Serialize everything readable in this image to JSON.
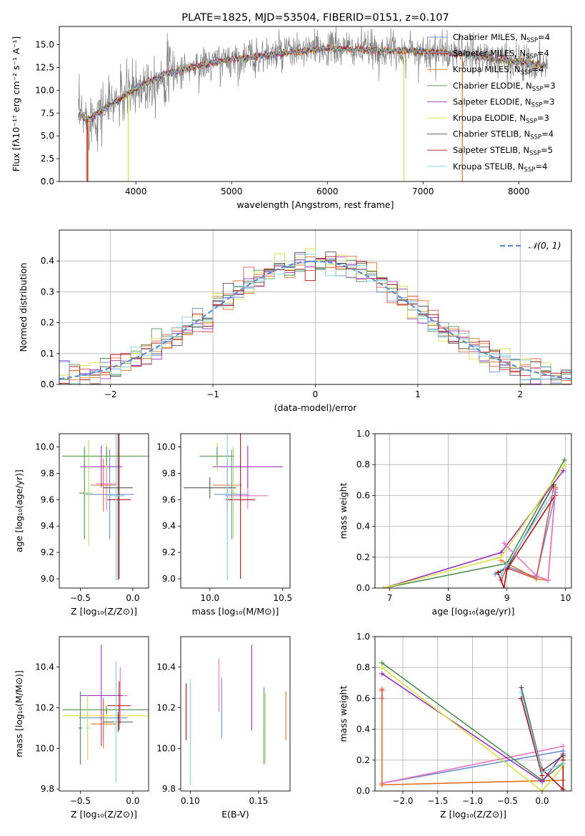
{
  "colors": {
    "chabrier_miles": "#6b8fd6",
    "salpeter_miles": "#e05050",
    "kroupa_miles": "#e07020",
    "chabrier_elodie": "#4f8f4f",
    "salpeter_elodie": "#9b30c0",
    "kroupa_elodie": "#d8e040",
    "chabrier_stelib": "#555555",
    "salpeter_stelib": "#b01010",
    "kroupa_stelib": "#7fd0e0",
    "pink": "#f070c0",
    "lightgreen": "#b0e060",
    "normal": "#5b8ed8"
  },
  "chart_data": [
    {
      "id": "spectrum",
      "type": "line",
      "title": "PLATE=1825, MJD=53504, FIBERID=0151, z=0.107",
      "xlabel": "wavelength [Angstrom, rest frame]",
      "ylabel": "Flux [fλ10⁻¹⁷ erg cm⁻² s⁻¹ A⁻¹]",
      "xlim": [
        3200,
        8550
      ],
      "ylim": [
        0,
        17
      ],
      "xticks": [
        "4000",
        "5000",
        "6000",
        "7000",
        "8000"
      ],
      "yticks": [
        "0.0",
        "2.5",
        "5.0",
        "7.5",
        "10.0",
        "12.5",
        "15.0"
      ],
      "legend_position": "right",
      "legend": [
        {
          "label": "Chabrier MILES, N",
          "sub": "SSP",
          "suffix": "=4",
          "color": "chabrier_miles"
        },
        {
          "label": "Salpeter MILES, N",
          "sub": "SSP",
          "suffix": "=4",
          "color": "salpeter_miles"
        },
        {
          "label": "Kroupa MILES, N",
          "sub": "SSP",
          "suffix": "=4",
          "color": "kroupa_miles"
        },
        {
          "label": "Chabrier ELODIE, N",
          "sub": "SSP",
          "suffix": "=3",
          "color": "chabrier_elodie"
        },
        {
          "label": "Salpeter ELODIE, N",
          "sub": "SSP",
          "suffix": "=3",
          "color": "salpeter_elodie"
        },
        {
          "label": "Kroupa ELODIE, N",
          "sub": "SSP",
          "suffix": "=3",
          "color": "kroupa_elodie"
        },
        {
          "label": "Chabrier STELIB, N",
          "sub": "SSP",
          "suffix": "=4",
          "color": "chabrier_stelib"
        },
        {
          "label": "Salpeter STELIB, N",
          "sub": "SSP",
          "suffix": "=5",
          "color": "salpeter_stelib"
        },
        {
          "label": "Kroupa STELIB, N",
          "sub": "SSP",
          "suffix": "=4",
          "color": "kroupa_stelib"
        }
      ],
      "model_curve": {
        "x": [
          3400,
          3500,
          3700,
          3900,
          4100,
          4300,
          4600,
          5000,
          5500,
          6000,
          6500,
          7000,
          7400,
          7800,
          8300
        ],
        "y": [
          7.3,
          6.8,
          8.2,
          9.5,
          10.8,
          11.8,
          12.6,
          13.4,
          14.0,
          14.6,
          14.4,
          14.3,
          14.0,
          13.4,
          12.7
        ]
      },
      "data_scatter": 1.0
    },
    {
      "id": "residuals",
      "type": "histogram",
      "xlabel": "(data-model)/error",
      "ylabel": "Normed distribution",
      "xlim": [
        -2.5,
        2.5
      ],
      "ylim": [
        0,
        0.5
      ],
      "xticks": [
        "−2",
        "−1",
        "0",
        "1",
        "2"
      ],
      "yticks": [
        "0.0",
        "0.1",
        "0.2",
        "0.3",
        "0.4"
      ],
      "grid": true,
      "legend_position": "top-right",
      "legend": [
        {
          "label": "𝒩(0, 1)",
          "color": "normal"
        }
      ],
      "bins": 50,
      "series_colors": [
        "chabrier_miles",
        "salpeter_miles",
        "kroupa_miles",
        "chabrier_elodie",
        "salpeter_elodie",
        "kroupa_elodie",
        "chabrier_stelib",
        "salpeter_stelib",
        "kroupa_stelib"
      ]
    },
    {
      "id": "age_vs_Z",
      "type": "errorbar",
      "xlabel": "Z [log₁₀(Z/Z⊙)]",
      "ylabel": "age  [log₁₀(age/yr)]",
      "xlim": [
        -0.7,
        0.15
      ],
      "ylim": [
        8.93,
        10.1
      ],
      "xticks": [
        {
          "v": -0.5,
          "t": "−0.5"
        },
        {
          "v": 0.0,
          "t": "0.0"
        }
      ],
      "yticks": [
        {
          "v": 9.0,
          "t": "9.0"
        },
        {
          "v": 9.2,
          "t": "9.2"
        },
        {
          "v": 9.4,
          "t": "9.4"
        },
        {
          "v": 9.6,
          "t": "9.6"
        },
        {
          "v": 9.8,
          "t": "9.8"
        },
        {
          "v": 10.0,
          "t": "10.0"
        }
      ],
      "points": [
        {
          "x": -0.22,
          "y": 9.64,
          "xe": 0.23,
          "ye": 0.34,
          "c": "chabrier_miles"
        },
        {
          "x": -0.25,
          "y": 9.72,
          "xe": 0.1,
          "ye": 0.2,
          "c": "pink"
        },
        {
          "x": -0.28,
          "y": 9.71,
          "xe": 0.12,
          "ye": 0.2,
          "c": "kroupa_miles"
        },
        {
          "x": -0.3,
          "y": 9.85,
          "xe": 0.2,
          "ye": 0.16,
          "c": "salpeter_elodie"
        },
        {
          "x": -0.25,
          "y": 9.93,
          "xe": 0.42,
          "ye": 0.1,
          "c": "kroupa_elodie"
        },
        {
          "x": -0.25,
          "y": 9.93,
          "xe": 0.42,
          "ye": 0.07,
          "c": "chabrier_elodie"
        },
        {
          "x": -0.14,
          "y": 9.69,
          "xe": 0.14,
          "ye": 0.7,
          "c": "chabrier_stelib"
        },
        {
          "x": -0.13,
          "y": 9.6,
          "xe": 0.11,
          "ye": 0.6,
          "c": "salpeter_stelib"
        },
        {
          "x": -0.16,
          "y": 9.63,
          "xe": 0.08,
          "ye": 0.64,
          "c": "kroupa_stelib"
        },
        {
          "x": -0.46,
          "y": 9.65,
          "xe": 0.05,
          "ye": 0.35,
          "c": "chabrier_elodie"
        },
        {
          "x": -0.42,
          "y": 9.65,
          "xe": 0.04,
          "ye": 0.4,
          "c": "lightgreen"
        }
      ]
    },
    {
      "id": "age_vs_mass",
      "type": "errorbar",
      "xlabel": "mass [log₁₀(M/M⊙)]",
      "ylabel": "",
      "xlim": [
        9.8,
        10.55
      ],
      "ylim": [
        8.93,
        10.1
      ],
      "xticks": [
        {
          "v": 10.0,
          "t": "10.0"
        },
        {
          "v": 10.5,
          "t": "10.5"
        }
      ],
      "yticks": [
        {
          "v": 9.0,
          "t": "9.0"
        },
        {
          "v": 9.2,
          "t": "9.2"
        },
        {
          "v": 9.4,
          "t": "9.4"
        },
        {
          "v": 9.6,
          "t": "9.6"
        },
        {
          "v": 9.8,
          "t": "9.8"
        },
        {
          "v": 10.0,
          "t": "10.0"
        }
      ],
      "points": [
        {
          "x": 10.15,
          "y": 9.64,
          "xe": 0.12,
          "ye": 0.34,
          "c": "chabrier_miles"
        },
        {
          "x": 10.26,
          "y": 9.63,
          "xe": 0.14,
          "ye": 0.1,
          "c": "pink"
        },
        {
          "x": 10.12,
          "y": 9.71,
          "xe": 0.1,
          "ye": 0.2,
          "c": "kroupa_miles"
        },
        {
          "x": 10.26,
          "y": 9.85,
          "xe": 0.24,
          "ye": 0.16,
          "c": "salpeter_elodie"
        },
        {
          "x": 10.05,
          "y": 9.93,
          "xe": 0.12,
          "ye": 0.1,
          "c": "kroupa_elodie"
        },
        {
          "x": 10.05,
          "y": 9.93,
          "xe": 0.12,
          "ye": 0.07,
          "c": "chabrier_elodie"
        },
        {
          "x": 10.0,
          "y": 9.69,
          "xe": 0.18,
          "ye": 0.08,
          "c": "chabrier_stelib"
        },
        {
          "x": 10.21,
          "y": 9.6,
          "xe": 0.1,
          "ye": 0.6,
          "c": "salpeter_stelib"
        },
        {
          "x": 10.12,
          "y": 9.63,
          "xe": 0.02,
          "ye": 0.64,
          "c": "kroupa_stelib"
        },
        {
          "x": 10.16,
          "y": 9.65,
          "xe": 0.02,
          "ye": 0.35,
          "c": "lightgreen"
        }
      ]
    },
    {
      "id": "weight_vs_age",
      "type": "line",
      "xlabel": "age  [log₁₀(age/yr)]",
      "ylabel": "mass weight",
      "xlim": [
        6.75,
        10.1
      ],
      "ylim": [
        0,
        1.0
      ],
      "xticks": [
        {
          "v": 7,
          "t": "7"
        },
        {
          "v": 8,
          "t": "8"
        },
        {
          "v": 9,
          "t": "9"
        },
        {
          "v": 10,
          "t": "10"
        }
      ],
      "yticks": [
        {
          "v": 0,
          "t": "0.0"
        },
        {
          "v": 0.2,
          "t": "0.2"
        },
        {
          "v": 0.4,
          "t": "0.4"
        },
        {
          "v": 0.6,
          "t": "0.6"
        },
        {
          "v": 0.8,
          "t": "0.8"
        },
        {
          "v": 1.0,
          "t": "1.0"
        }
      ],
      "grid": true,
      "series": [
        {
          "c": "chabrier_miles",
          "x": [
            8.8,
            9.0,
            9.5,
            9.83
          ],
          "y": [
            0.09,
            0.14,
            0.07,
            0.62
          ]
        },
        {
          "c": "salpeter_miles",
          "x": [
            8.9,
            9.0,
            9.5,
            9.8
          ],
          "y": [
            0.05,
            0.13,
            0.06,
            0.66
          ]
        },
        {
          "c": "kroupa_miles",
          "x": [
            8.9,
            9.5,
            9.7,
            9.83
          ],
          "y": [
            0.18,
            0.06,
            0.05,
            0.65
          ]
        },
        {
          "c": "chabrier_elodie",
          "x": [
            6.9,
            9.0,
            9.98
          ],
          "y": [
            0.0,
            0.16,
            0.83
          ]
        },
        {
          "c": "salpeter_elodie",
          "x": [
            6.9,
            8.9,
            9.96
          ],
          "y": [
            0.0,
            0.23,
            0.76
          ]
        },
        {
          "c": "kroupa_elodie",
          "x": [
            6.9,
            8.9,
            9.98
          ],
          "y": [
            0.0,
            0.2,
            0.8
          ]
        },
        {
          "c": "chabrier_stelib",
          "x": [
            8.85,
            9.0,
            9.8
          ],
          "y": [
            0.1,
            0.13,
            0.67
          ]
        },
        {
          "c": "salpeter_stelib",
          "x": [
            8.85,
            8.95,
            9.0,
            9.82
          ],
          "y": [
            0.1,
            0.0,
            0.12,
            0.6
          ]
        },
        {
          "c": "kroupa_stelib",
          "x": [
            8.9,
            9.0,
            9.83
          ],
          "y": [
            0.08,
            0.15,
            0.64
          ]
        },
        {
          "c": "pink",
          "x": [
            8.95,
            9.5,
            9.7,
            9.83
          ],
          "y": [
            0.29,
            0.08,
            0.05,
            0.64
          ]
        }
      ]
    },
    {
      "id": "mass_vs_Z",
      "type": "errorbar",
      "xlabel": "Z [log₁₀(Z/Z⊙)]",
      "ylabel": "mass [log₁₀(M/M⊙)]",
      "xlim": [
        -0.7,
        0.15
      ],
      "ylim": [
        9.79,
        10.55
      ],
      "xticks": [
        {
          "v": -0.5,
          "t": "−0.5"
        },
        {
          "v": 0.0,
          "t": "0.0"
        }
      ],
      "yticks": [
        {
          "v": 9.8,
          "t": "9.8"
        },
        {
          "v": 10.0,
          "t": "10.0"
        },
        {
          "v": 10.2,
          "t": "10.2"
        },
        {
          "v": 10.4,
          "t": "10.4"
        }
      ],
      "points": [
        {
          "x": -0.28,
          "y": 10.15,
          "xe": 0.23,
          "ye": 0.1,
          "c": "chabrier_miles"
        },
        {
          "x": -0.12,
          "y": 10.26,
          "xe": 0.07,
          "ye": 0.14,
          "c": "pink"
        },
        {
          "x": -0.28,
          "y": 10.12,
          "xe": 0.12,
          "ye": 0.12,
          "c": "kroupa_miles"
        },
        {
          "x": -0.3,
          "y": 10.26,
          "xe": 0.2,
          "ye": 0.25,
          "c": "salpeter_elodie"
        },
        {
          "x": -0.25,
          "y": 10.16,
          "xe": 0.42,
          "ye": 0.05,
          "c": "kroupa_elodie"
        },
        {
          "x": -0.25,
          "y": 10.19,
          "xe": 0.42,
          "ye": 0.02,
          "c": "chabrier_elodie"
        },
        {
          "x": -0.14,
          "y": 10.13,
          "xe": 0.14,
          "ye": 0.05,
          "c": "chabrier_stelib"
        },
        {
          "x": -0.13,
          "y": 10.21,
          "xe": 0.11,
          "ye": 0.12,
          "c": "salpeter_stelib"
        },
        {
          "x": -0.16,
          "y": 10.13,
          "xe": 0.02,
          "ye": 0.3,
          "c": "kroupa_stelib"
        },
        {
          "x": -0.5,
          "y": 10.1,
          "xe": 0.02,
          "ye": 0.18,
          "c": "chabrier_elodie"
        },
        {
          "x": -0.43,
          "y": 10.1,
          "xe": 0.02,
          "ye": 0.16,
          "c": "lightgreen"
        }
      ]
    },
    {
      "id": "mass_vs_ebv",
      "type": "errorbar",
      "xlabel": "E(B-V)",
      "ylabel": "",
      "xlim": [
        0.093,
        0.173
      ],
      "ylim": [
        9.79,
        10.55
      ],
      "xticks": [
        {
          "v": 0.1,
          "t": "0.10"
        },
        {
          "v": 0.15,
          "t": "0.15"
        }
      ],
      "yticks": [
        {
          "v": 9.8,
          "t": "9.8"
        },
        {
          "v": 10.0,
          "t": "10.0"
        },
        {
          "v": 10.2,
          "t": "10.2"
        },
        {
          "v": 10.4,
          "t": "10.4"
        }
      ],
      "points": [
        {
          "x": 0.097,
          "y": 10.18,
          "xe": 0,
          "ye": 0.14,
          "c": "salpeter_stelib"
        },
        {
          "x": 0.1,
          "y": 10.08,
          "xe": 0,
          "ye": 0.26,
          "c": "kroupa_stelib"
        },
        {
          "x": 0.121,
          "y": 10.31,
          "xe": 0,
          "ye": 0.13,
          "c": "pink"
        },
        {
          "x": 0.123,
          "y": 10.2,
          "xe": 0,
          "ye": 0.15,
          "c": "chabrier_miles"
        },
        {
          "x": 0.145,
          "y": 10.3,
          "xe": 0,
          "ye": 0.21,
          "c": "salpeter_elodie"
        },
        {
          "x": 0.154,
          "y": 10.11,
          "xe": 0,
          "ye": 0.19,
          "c": "chabrier_elodie"
        },
        {
          "x": 0.155,
          "y": 10.1,
          "xe": 0,
          "ye": 0.17,
          "c": "lightgreen"
        },
        {
          "x": 0.17,
          "y": 10.16,
          "xe": 0,
          "ye": 0.12,
          "c": "kroupa_miles"
        }
      ]
    },
    {
      "id": "weight_vs_Z",
      "type": "line",
      "xlabel": "Z [log₁₀(Z/Z⊙)]",
      "ylabel": "mass weight",
      "xlim": [
        -2.4,
        0.42
      ],
      "ylim": [
        0,
        1.0
      ],
      "xticks": [
        {
          "v": -2.0,
          "t": "−2.0"
        },
        {
          "v": -1.5,
          "t": "−1.5"
        },
        {
          "v": -1.0,
          "t": "−1.0"
        },
        {
          "v": -0.5,
          "t": "−0.5"
        },
        {
          "v": 0.0,
          "t": "0.0"
        }
      ],
      "yticks": [
        {
          "v": 0,
          "t": "0.0"
        },
        {
          "v": 0.2,
          "t": "0.2"
        },
        {
          "v": 0.4,
          "t": "0.4"
        },
        {
          "v": 0.6,
          "t": "0.6"
        },
        {
          "v": 0.8,
          "t": "0.8"
        },
        {
          "v": 1.0,
          "t": "1.0"
        }
      ],
      "grid": true,
      "series": [
        {
          "c": "chabrier_miles",
          "x": [
            -2.3,
            0.3
          ],
          "y": [
            0.05,
            0.26
          ]
        },
        {
          "c": "pink",
          "x": [
            -2.3,
            0.3
          ],
          "y": [
            0.05,
            0.29
          ]
        },
        {
          "c": "kroupa_miles",
          "x": [
            -2.3,
            -2.3,
            -2.3,
            0.3,
            0.3
          ],
          "y": [
            0.65,
            0.6,
            0.04,
            0.07,
            0.22
          ]
        },
        {
          "c": "salpeter_miles",
          "x": [
            -2.3,
            -2.3
          ],
          "y": [
            0.66,
            0.6
          ]
        },
        {
          "c": "chabrier_elodie",
          "x": [
            -2.3,
            0.0,
            0.3
          ],
          "y": [
            0.83,
            0.07,
            0.18
          ]
        },
        {
          "c": "salpeter_elodie",
          "x": [
            -2.3,
            0.0,
            0.3
          ],
          "y": [
            0.76,
            0.06,
            0.24
          ]
        },
        {
          "c": "kroupa_elodie",
          "x": [
            -2.3,
            0.0,
            0.3
          ],
          "y": [
            0.8,
            0.0,
            0.16
          ]
        },
        {
          "c": "chabrier_stelib",
          "x": [
            -0.3,
            0.0,
            0.3
          ],
          "y": [
            0.67,
            0.13,
            0.23
          ]
        },
        {
          "c": "salpeter_stelib",
          "x": [
            -0.3,
            0.0,
            0.0,
            0.3,
            0.3
          ],
          "y": [
            0.6,
            0.1,
            0.14,
            0.01,
            0.2
          ]
        },
        {
          "c": "kroupa_stelib",
          "x": [
            -0.3,
            0.0,
            0.3
          ],
          "y": [
            0.64,
            0.12,
            0.18
          ]
        }
      ]
    }
  ]
}
